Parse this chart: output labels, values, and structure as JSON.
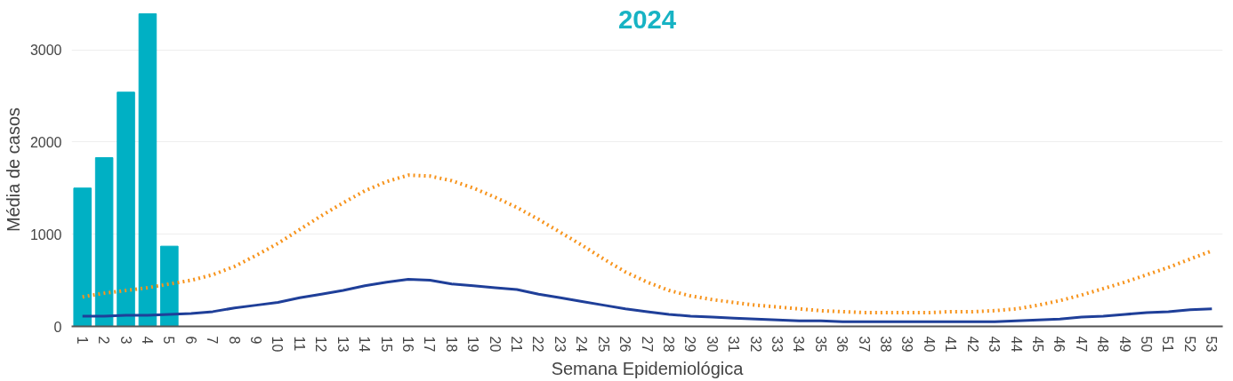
{
  "chart_data": {
    "type": "bar",
    "title": "2024",
    "xlabel": "Semana Epidemiológica",
    "ylabel": "Média de casos",
    "categories": [
      "1",
      "2",
      "3",
      "4",
      "5",
      "6",
      "7",
      "8",
      "9",
      "10",
      "11",
      "12",
      "13",
      "14",
      "15",
      "16",
      "17",
      "18",
      "19",
      "20",
      "21",
      "22",
      "23",
      "24",
      "25",
      "26",
      "27",
      "28",
      "29",
      "30",
      "31",
      "32",
      "33",
      "34",
      "35",
      "36",
      "37",
      "38",
      "39",
      "40",
      "41",
      "42",
      "43",
      "44",
      "45",
      "46",
      "47",
      "48",
      "49",
      "50",
      "51",
      "52",
      "53"
    ],
    "ylim": [
      0,
      3400
    ],
    "yticks": [
      0,
      1000,
      2000,
      3000
    ],
    "grid": "y",
    "series": [
      {
        "color": "#00b0c4",
        "values": [
          1500,
          1830,
          2540,
          3390,
          870,
          null,
          null,
          null,
          null,
          null,
          null,
          null,
          null,
          null,
          null,
          null,
          null,
          null,
          null,
          null,
          null,
          null,
          null,
          null,
          null,
          null,
          null,
          null,
          null,
          null,
          null,
          null,
          null,
          null,
          null,
          null,
          null,
          null,
          null,
          null,
          null,
          null,
          null,
          null,
          null,
          null,
          null,
          null,
          null,
          null,
          null,
          null,
          null
        ]
      },
      {
        "type": "line",
        "color": "#f7941d",
        "line_style": "dotted",
        "values": [
          320,
          360,
          390,
          420,
          460,
          500,
          560,
          650,
          770,
          900,
          1050,
          1200,
          1340,
          1470,
          1570,
          1640,
          1630,
          1580,
          1500,
          1400,
          1290,
          1160,
          1020,
          880,
          730,
          590,
          480,
          390,
          330,
          290,
          260,
          230,
          210,
          190,
          170,
          160,
          150,
          150,
          150,
          150,
          160,
          160,
          170,
          190,
          230,
          280,
          340,
          410,
          480,
          560,
          640,
          730,
          820
        ]
      },
      {
        "type": "line",
        "color": "#1f3f99",
        "line_style": "solid",
        "values": [
          110,
          110,
          120,
          120,
          130,
          140,
          160,
          200,
          230,
          260,
          310,
          350,
          390,
          440,
          480,
          510,
          500,
          460,
          440,
          420,
          400,
          350,
          310,
          270,
          230,
          190,
          160,
          130,
          110,
          100,
          90,
          80,
          70,
          60,
          60,
          50,
          50,
          50,
          50,
          50,
          50,
          50,
          50,
          60,
          70,
          80,
          100,
          110,
          130,
          150,
          160,
          180,
          190
        ]
      }
    ]
  }
}
